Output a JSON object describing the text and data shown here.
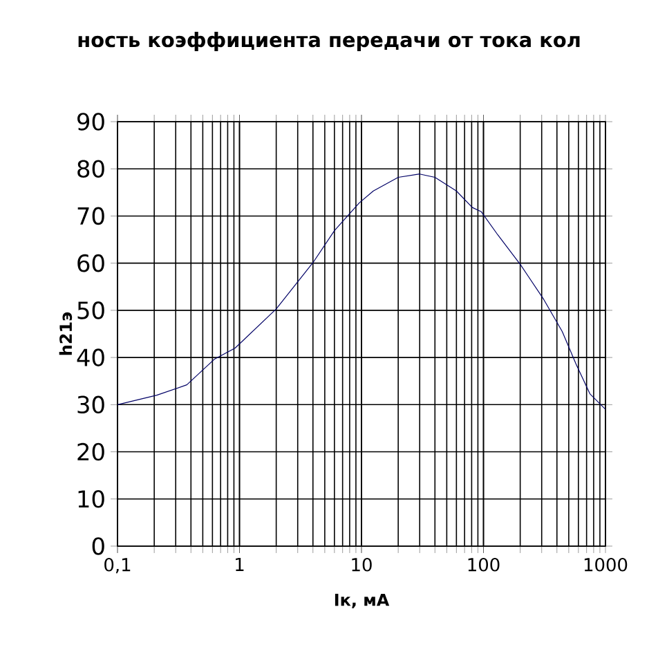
{
  "chart_data": {
    "type": "line",
    "title": "ность коэффициента передачи от тока кол",
    "xlabel": "Iк, мА",
    "ylabel": "h21э",
    "x": [
      0.1,
      0.21,
      0.37,
      0.62,
      0.92,
      2.0,
      4.0,
      6.0,
      9.6,
      12.5,
      20,
      30,
      40,
      60,
      81,
      96,
      131,
      202,
      312,
      442,
      574,
      745,
      1000
    ],
    "series": [
      {
        "color": "#000066",
        "values": [
          30,
          32,
          34.2,
          39.6,
          42,
          50.3,
          60.1,
          66.9,
          72.8,
          75.3,
          78.2,
          78.9,
          78.2,
          75.3,
          71.8,
          70.9,
          66,
          59.6,
          52.3,
          45.5,
          38.6,
          32.3,
          29
        ]
      }
    ],
    "log": "x",
    "xlim": [
      0.1,
      1000
    ],
    "ylim": [
      0,
      90
    ],
    "xticks": [
      {
        "value": 0.1,
        "label": "0,1"
      },
      1,
      10,
      100,
      1000
    ],
    "yticks": [
      0,
      10,
      20,
      30,
      40,
      50,
      60,
      70,
      80,
      90
    ],
    "grid": true,
    "marker": "none",
    "line_style": "solid"
  }
}
